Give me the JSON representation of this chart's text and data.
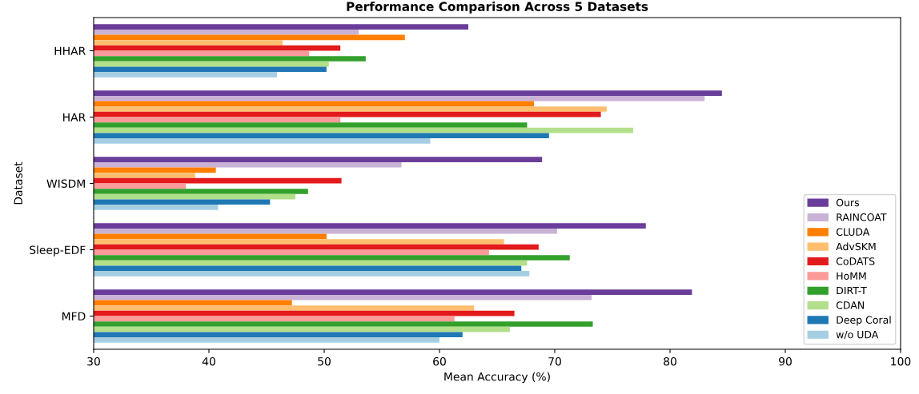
{
  "chart_data": {
    "type": "bar",
    "orientation": "horizontal",
    "title": "Performance Comparison Across 5 Datasets",
    "xlabel": "Mean Accuracy (%)",
    "ylabel": "Dataset",
    "categories": [
      "HHAR",
      "HAR",
      "WISDM",
      "Sleep-EDF",
      "MFD"
    ],
    "series": [
      {
        "name": "Ours",
        "color": "#6a3d9a",
        "values": [
          62.5,
          84.5,
          68.9,
          77.9,
          81.9
        ]
      },
      {
        "name": "RAINCOAT",
        "color": "#cab2d6",
        "values": [
          53.0,
          83.0,
          56.7,
          70.2,
          73.2
        ]
      },
      {
        "name": "CLUDA",
        "color": "#ff7f00",
        "values": [
          57.0,
          68.2,
          40.6,
          50.2,
          47.2
        ]
      },
      {
        "name": "AdvSKM",
        "color": "#fdbf6f",
        "values": [
          46.4,
          74.5,
          38.8,
          65.6,
          63.0
        ]
      },
      {
        "name": "CoDATS",
        "color": "#e31a1c",
        "values": [
          51.4,
          74.0,
          51.5,
          68.6,
          66.5
        ]
      },
      {
        "name": "HoMM",
        "color": "#fb9a99",
        "values": [
          48.7,
          51.4,
          38.0,
          64.3,
          61.3
        ]
      },
      {
        "name": "DIRT-T",
        "color": "#33a02c",
        "values": [
          53.6,
          67.6,
          48.6,
          71.3,
          73.3
        ]
      },
      {
        "name": "CDAN",
        "color": "#b2df8a",
        "values": [
          50.4,
          76.8,
          47.5,
          67.6,
          66.1
        ]
      },
      {
        "name": "Deep Coral",
        "color": "#1f78b4",
        "values": [
          50.2,
          69.5,
          45.3,
          67.1,
          62.0
        ]
      },
      {
        "name": "w/o UDA",
        "color": "#a6cee3",
        "values": [
          45.9,
          59.2,
          40.8,
          67.8,
          60.0
        ]
      }
    ],
    "xlim": [
      30,
      100
    ],
    "xticks": [
      30,
      40,
      50,
      60,
      70,
      80,
      90,
      100
    ],
    "grid": false,
    "legend": "bottom right"
  }
}
